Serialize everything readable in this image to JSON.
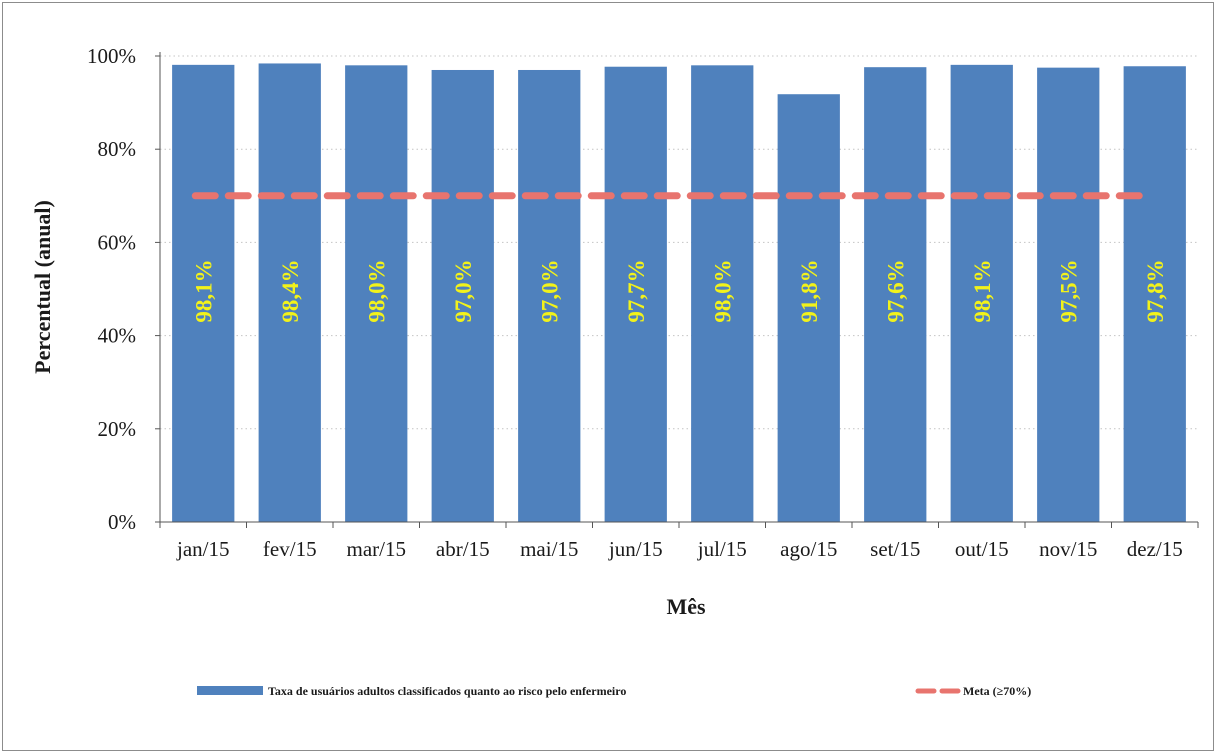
{
  "chart_data": {
    "type": "bar",
    "title": "",
    "xlabel": "Mês",
    "ylabel": "Percentual (anual)",
    "categories": [
      "jan/15",
      "fev/15",
      "mar/15",
      "abr/15",
      "mai/15",
      "jun/15",
      "jul/15",
      "ago/15",
      "set/15",
      "out/15",
      "nov/15",
      "dez/15"
    ],
    "series": [
      {
        "name": "Taxa de usuários adultos classificados quanto ao risco pelo enfermeiro",
        "type": "bar",
        "color": "#4f81bd",
        "values": [
          98.1,
          98.4,
          98.0,
          97.0,
          97.0,
          97.7,
          98.0,
          91.8,
          97.6,
          98.1,
          97.5,
          97.8
        ],
        "data_labels": [
          "98,1%",
          "98,4%",
          "98,0%",
          "97,0%",
          "97,0%",
          "97,7%",
          "98,0%",
          "91,8%",
          "97,6%",
          "98,1%",
          "97,5%",
          "97,8%"
        ]
      },
      {
        "name": "Meta (≥70%)",
        "type": "line",
        "style": "dashed",
        "color": "#e8746e",
        "values": [
          70,
          70,
          70,
          70,
          70,
          70,
          70,
          70,
          70,
          70,
          70,
          70
        ]
      }
    ],
    "ylim": [
      0,
      100
    ],
    "yticks": [
      0,
      20,
      40,
      60,
      80,
      100
    ],
    "ytick_labels": [
      "0%",
      "20%",
      "40%",
      "60%",
      "80%",
      "100%"
    ],
    "grid": true,
    "legend_position": "bottom",
    "data_label_color": "#f2f21a"
  }
}
